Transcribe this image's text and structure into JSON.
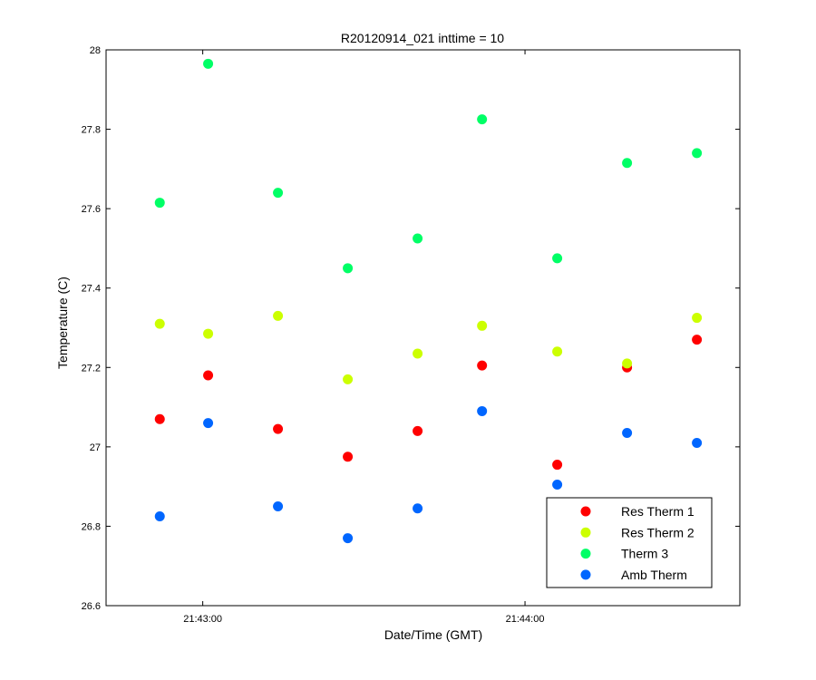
{
  "chart_data": {
    "type": "scatter",
    "title": "R20120914_021 inttime = 10",
    "xlabel": "Date/Time (GMT)",
    "ylabel": "Temperature (C)",
    "xlim": [
      "21:42:42",
      "21:44:40"
    ],
    "ylim": [
      26.6,
      28.0
    ],
    "x_tick_labels": [
      "21:43:00",
      "21:44:00"
    ],
    "y_tick_labels": [
      "26.6",
      "26.8",
      "27",
      "27.2",
      "27.4",
      "27.6",
      "27.8",
      "28"
    ],
    "grid": false,
    "legend_position": "bottom-right",
    "x": [
      "21:42:52",
      "21:43:01",
      "21:43:14",
      "21:43:27",
      "21:43:40",
      "21:43:52",
      "21:44:06",
      "21:44:19",
      "21:44:32"
    ],
    "series": [
      {
        "name": "Res Therm 1",
        "color": "#ff0000",
        "values": [
          27.07,
          27.18,
          27.045,
          26.975,
          27.04,
          27.205,
          26.955,
          27.2,
          27.27
        ]
      },
      {
        "name": "Res Therm 2",
        "color": "#ccff00",
        "values": [
          27.31,
          27.285,
          27.33,
          27.17,
          27.235,
          27.305,
          27.24,
          27.21,
          27.325
        ]
      },
      {
        "name": "Therm 3",
        "color": "#00ff66",
        "values": [
          27.615,
          27.965,
          27.64,
          27.45,
          27.525,
          27.825,
          27.475,
          27.715,
          27.74
        ]
      },
      {
        "name": "Amb Therm",
        "color": "#0066ff",
        "values": [
          26.825,
          27.06,
          26.85,
          26.77,
          26.845,
          27.09,
          26.905,
          27.035,
          27.01
        ]
      }
    ]
  }
}
